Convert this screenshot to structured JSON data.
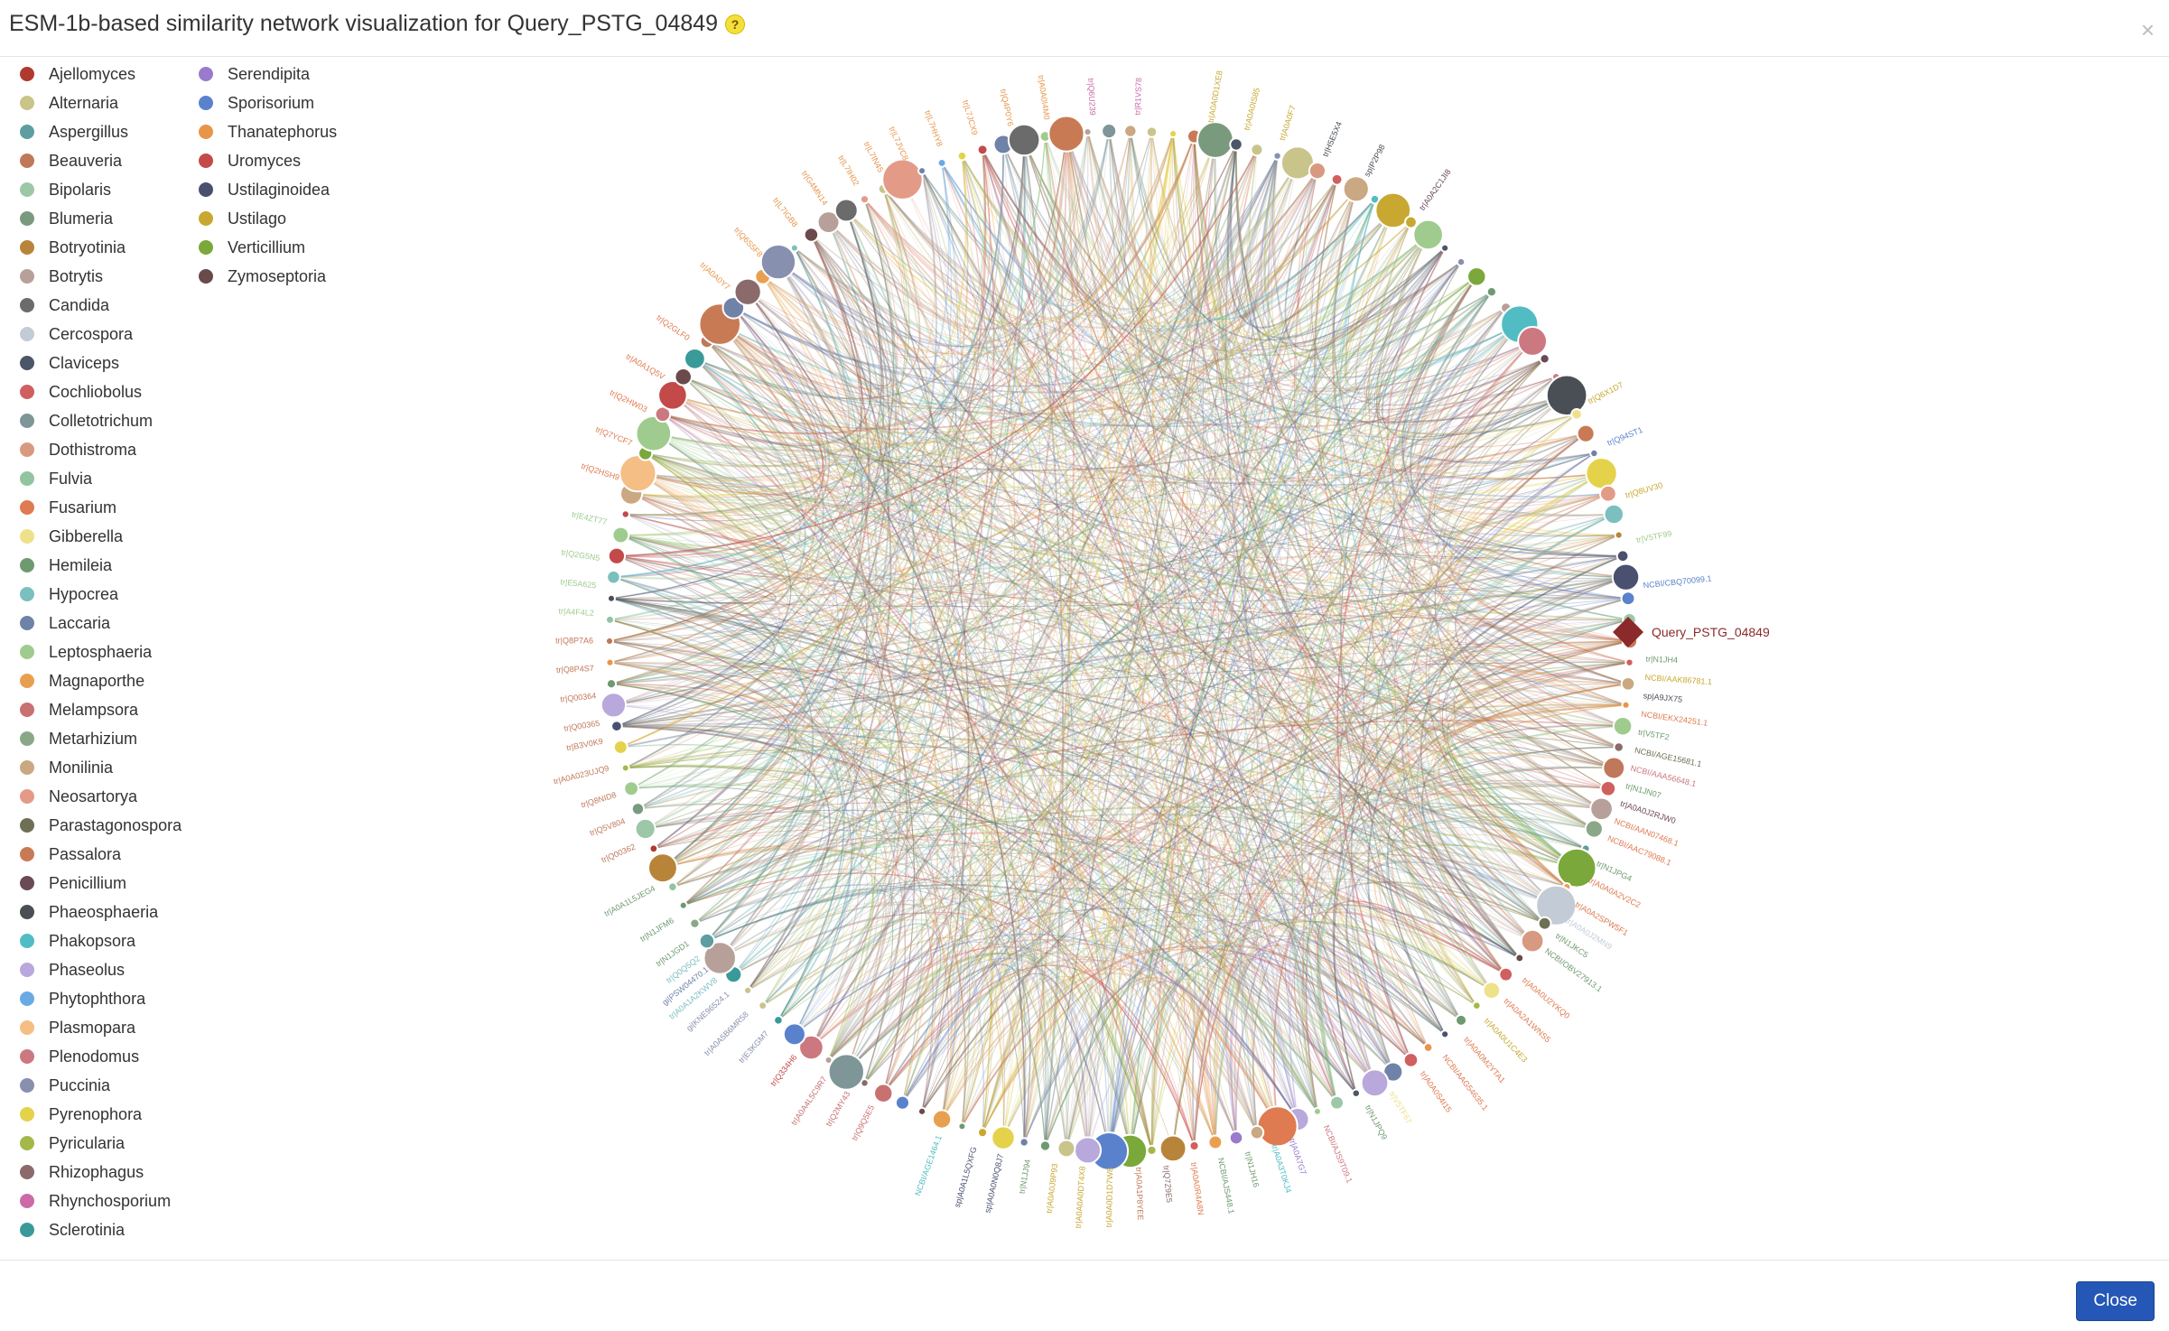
{
  "dialog": {
    "title": "ESM-1b-based similarity network visualization for Query_PSTG_04849",
    "help_icon": "?",
    "close_icon": "×",
    "close_button": "Close"
  },
  "legend": {
    "col1": [
      {
        "label": "Ajellomyces",
        "color": "#b03a2e"
      },
      {
        "label": "Alternaria",
        "color": "#c9c48a"
      },
      {
        "label": "Aspergillus",
        "color": "#5e9ea0"
      },
      {
        "label": "Beauveria",
        "color": "#c0785a"
      },
      {
        "label": "Bipolaris",
        "color": "#9cc8a8"
      },
      {
        "label": "Blumeria",
        "color": "#7a9a7e"
      },
      {
        "label": "Botryotinia",
        "color": "#b8843a"
      },
      {
        "label": "Botrytis",
        "color": "#b8a09a"
      },
      {
        "label": "Candida",
        "color": "#6b6b6b"
      },
      {
        "label": "Cercospora",
        "color": "#c3ccd6"
      },
      {
        "label": "Claviceps",
        "color": "#4b5668"
      },
      {
        "label": "Cochliobolus",
        "color": "#d05f5f"
      },
      {
        "label": "Colletotrichum",
        "color": "#7f9699"
      },
      {
        "label": "Dothistroma",
        "color": "#d79a80"
      },
      {
        "label": "Fulvia",
        "color": "#92c4a0"
      },
      {
        "label": "Fusarium",
        "color": "#e07a50"
      },
      {
        "label": "Gibberella",
        "color": "#efe08a"
      },
      {
        "label": "Hemileia",
        "color": "#6f9a70"
      },
      {
        "label": "Hypocrea",
        "color": "#7cbfbf"
      },
      {
        "label": "Laccaria",
        "color": "#6f82a8"
      },
      {
        "label": "Leptosphaeria",
        "color": "#9fcc8e"
      },
      {
        "label": "Magnaporthe",
        "color": "#e8a050"
      },
      {
        "label": "Melampsora",
        "color": "#c97070"
      },
      {
        "label": "Metarhizium",
        "color": "#8aa888"
      },
      {
        "label": "Monilinia",
        "color": "#c9a882"
      },
      {
        "label": "Neosartorya",
        "color": "#e39b88"
      },
      {
        "label": "Parastagonospora",
        "color": "#6f6f55"
      },
      {
        "label": "Passalora",
        "color": "#c87a55"
      },
      {
        "label": "Penicillium",
        "color": "#6a4a55"
      },
      {
        "label": "Phaeosphaeria",
        "color": "#4a4f55"
      },
      {
        "label": "Phakopsora",
        "color": "#52bcc4"
      },
      {
        "label": "Phaseolus",
        "color": "#b8a8dc"
      },
      {
        "label": "Phytophthora",
        "color": "#6aaae4"
      },
      {
        "label": "Plasmopara",
        "color": "#f4be84"
      },
      {
        "label": "Plenodomus",
        "color": "#cc7880"
      },
      {
        "label": "Puccinia",
        "color": "#8890b0"
      },
      {
        "label": "Pyrenophora",
        "color": "#e4d24a"
      },
      {
        "label": "Pyricularia",
        "color": "#a4b84a"
      },
      {
        "label": "Rhizophagus",
        "color": "#8a6a6a"
      },
      {
        "label": "Rhynchosporium",
        "color": "#cc6aa8"
      },
      {
        "label": "Sclerotinia",
        "color": "#3a9a9a"
      }
    ],
    "col2": [
      {
        "label": "Serendipita",
        "color": "#9a7acc"
      },
      {
        "label": "Sporisorium",
        "color": "#5a82cc"
      },
      {
        "label": "Thanatephorus",
        "color": "#e8954a"
      },
      {
        "label": "Uromyces",
        "color": "#c44a4a"
      },
      {
        "label": "Ustilaginoidea",
        "color": "#4a5070"
      },
      {
        "label": "Ustilago",
        "color": "#c8a830"
      },
      {
        "label": "Verticillium",
        "color": "#7aa83a"
      },
      {
        "label": "Zymoseptoria",
        "color": "#6a4a4a"
      }
    ]
  },
  "graph": {
    "query_label": "Query_PSTG_04849",
    "query_color": "#8b2a2a",
    "node_labels": [
      {
        "label": "NCBI/CBQ70099.1",
        "color": "#5a82cc",
        "angle": -6
      },
      {
        "label": "tr|V5TF99",
        "color": "#9fcc8e",
        "angle": -11
      },
      {
        "label": "tr|Q8UV30",
        "color": "#c8a830",
        "angle": -16
      },
      {
        "label": "tr|Q94ST1",
        "color": "#5a82cc",
        "angle": -22
      },
      {
        "label": "tr|Q6X1D7",
        "color": "#c8a830",
        "angle": -27
      },
      {
        "label": "tr|A0A2C1JI8",
        "color": "#6a4a55",
        "angle": -55
      },
      {
        "label": "sp|P2P98",
        "color": "#4a4f55",
        "angle": -62
      },
      {
        "label": "tr|H5E5X4",
        "color": "#4a4f55",
        "angle": -67
      },
      {
        "label": "tr|A0A0F7",
        "color": "#c8a830",
        "angle": -72
      },
      {
        "label": "tr|A0A0IS85",
        "color": "#c8a830",
        "angle": -76
      },
      {
        "label": "tr|A0A0D1XE8",
        "color": "#c8a830",
        "angle": -80
      },
      {
        "label": "tr|R1VS78",
        "color": "#cc6aa8",
        "angle": -88
      },
      {
        "label": "tr|Q6U239",
        "color": "#cc6aa8",
        "angle": -93
      },
      {
        "label": "tr|A0A0I4M0",
        "color": "#e8954a",
        "angle": -98
      },
      {
        "label": "tr|Q4P0Y6",
        "color": "#e8954a",
        "angle": -102
      },
      {
        "label": "tr|L7JCX9",
        "color": "#e8954a",
        "angle": -106
      },
      {
        "label": "tr|L7HHY8",
        "color": "#e8954a",
        "angle": -110
      },
      {
        "label": "tr|L7JVC8",
        "color": "#e8954a",
        "angle": -114
      },
      {
        "label": "tr|L7IN45",
        "color": "#e8954a",
        "angle": -117
      },
      {
        "label": "tr|L7IH02",
        "color": "#e8954a",
        "angle": -120
      },
      {
        "label": "tr|G4MN14",
        "color": "#e8954a",
        "angle": -124
      },
      {
        "label": "tr|L7IGB8",
        "color": "#e8954a",
        "angle": -128
      },
      {
        "label": "tr|Q6S5F8",
        "color": "#e8954a",
        "angle": -133
      },
      {
        "label": "tr|A0A0Y7",
        "color": "#e8954a",
        "angle": -138
      },
      {
        "label": "tr|Q2GLF0",
        "color": "#e07a50",
        "angle": -145
      },
      {
        "label": "tr|A0A1Q5V",
        "color": "#e07a50",
        "angle": -150
      },
      {
        "label": "tr|Q2HW03",
        "color": "#e07a50",
        "angle": -154
      },
      {
        "label": "tr|Q7YCF7",
        "color": "#e07a50",
        "angle": -158
      },
      {
        "label": "tr|Q2HSH9",
        "color": "#e07a50",
        "angle": -162
      },
      {
        "label": "tr|E4ZT77",
        "color": "#9fcc8e",
        "angle": -167
      },
      {
        "label": "tr|Q2G5N5",
        "color": "#9fcc8e",
        "angle": -171
      },
      {
        "label": "tr|E5A625",
        "color": "#9fcc8e",
        "angle": -174
      },
      {
        "label": "tr|A4F4L2",
        "color": "#9fcc8e",
        "angle": -177
      },
      {
        "label": "tr|Q8P7A6",
        "color": "#c0785a",
        "angle": -180
      },
      {
        "label": "tr|Q8P4S7",
        "color": "#c0785a",
        "angle": 177
      },
      {
        "label": "tr|Q00364",
        "color": "#c0785a",
        "angle": 174
      },
      {
        "label": "tr|Q00365",
        "color": "#c0785a",
        "angle": 171
      },
      {
        "label": "tr|B3V0K9",
        "color": "#c0785a",
        "angle": 169
      },
      {
        "label": "tr|A0A023UJQ9",
        "color": "#c0785a",
        "angle": 166
      },
      {
        "label": "tr|Q8NID8",
        "color": "#c0785a",
        "angle": 163
      },
      {
        "label": "tr|Q5V804",
        "color": "#c0785a",
        "angle": 160
      },
      {
        "label": "tr|Q00362",
        "color": "#c0785a",
        "angle": 157
      },
      {
        "label": "tr|A0A1L5JEG4",
        "color": "#6f9a70",
        "angle": 152
      },
      {
        "label": "tr|N1JFM6",
        "color": "#6f9a70",
        "angle": 148
      },
      {
        "label": "tr|N1JGD1",
        "color": "#6f9a70",
        "angle": 145
      },
      {
        "label": "tr|Q0Q5Q2",
        "color": "#7cbfbf",
        "angle": 143
      },
      {
        "label": "tr|A0A1A2KWV8",
        "color": "#7cbfbf",
        "angle": 140
      },
      {
        "label": "gi|PSW04470.1",
        "color": "#6f82a8",
        "angle": 141.5
      },
      {
        "label": "gi|KNE96524.1",
        "color": "#8890b0",
        "angle": 138
      },
      {
        "label": "tr|A0A5B6MR58",
        "color": "#8890b0",
        "angle": 135
      },
      {
        "label": "tr|E3KGM7",
        "color": "#8890b0",
        "angle": 132
      },
      {
        "label": "tr|Q334H6",
        "color": "#c44a4a",
        "angle": 128
      },
      {
        "label": "tr|A0A4L5C9R7",
        "color": "#c97070",
        "angle": 124
      },
      {
        "label": "tr|Q2MY43",
        "color": "#c97070",
        "angle": 121
      },
      {
        "label": "tr|Q9Q5E5",
        "color": "#c97070",
        "angle": 118
      },
      {
        "label": "sp|A0A1L5QXFG",
        "color": "#4a5070",
        "angle": 106
      },
      {
        "label": "NCBI/AGE1464.1",
        "color": "#52bcc4",
        "angle": 110
      },
      {
        "label": "sp|A0A0N0Q8J7",
        "color": "#4a5070",
        "angle": 103
      },
      {
        "label": "tr|N1JJ94",
        "color": "#6f9a70",
        "angle": 100
      },
      {
        "label": "tr|A0A0J9P93",
        "color": "#c8a830",
        "angle": 97
      },
      {
        "label": "tr|A0A0A0DT4X8",
        "color": "#c8a830",
        "angle": 94
      },
      {
        "label": "tr|A0A0D1D7W8",
        "color": "#c8a830",
        "angle": 91
      },
      {
        "label": "tr|A0A1P8YEE",
        "color": "#c0785a",
        "angle": 88
      },
      {
        "label": "tr|Q7Z9E5",
        "color": "#8a6a6a",
        "angle": 85
      },
      {
        "label": "tr|A0A0R4A8N",
        "color": "#e07a50",
        "angle": 82
      },
      {
        "label": "NCBI/AJS448.1",
        "color": "#6f9a70",
        "angle": 79
      },
      {
        "label": "tr|N1JH16",
        "color": "#6f9a70",
        "angle": 76
      },
      {
        "label": "tr|A0A3T0KJ4",
        "color": "#52bcc4",
        "angle": 73
      },
      {
        "label": "tr|A0A7G7",
        "color": "#9a7acc",
        "angle": 71
      },
      {
        "label": "NCBI/AJS9T09.1",
        "color": "#cc7880",
        "angle": 67
      },
      {
        "label": "tr|N1JPQ9",
        "color": "#6f9a70",
        "angle": 62
      },
      {
        "label": "tr|V5TF67",
        "color": "#efe08a",
        "angle": 59
      },
      {
        "label": "tr|A0A0S4I15",
        "color": "#e07a50",
        "angle": 55
      },
      {
        "label": "NCBI/AAG54635.1",
        "color": "#e07a50",
        "angle": 52
      },
      {
        "label": "tr|A0A0M2YTA1",
        "color": "#e07a50",
        "angle": 49
      },
      {
        "label": "tr|A0A0U1C4E3",
        "color": "#c8a830",
        "angle": 46
      },
      {
        "label": "tr|A0A2A1WNS5",
        "color": "#e07a50",
        "angle": 43
      },
      {
        "label": "tr|A0A0U2YKQ0",
        "color": "#e07a50",
        "angle": 40
      },
      {
        "label": "NCBI/OBV27913.1",
        "color": "#6f9a70",
        "angle": 36
      },
      {
        "label": "tr|N1JKC5",
        "color": "#6f9a70",
        "angle": 34
      },
      {
        "label": "tr|A0A0J2MN9",
        "color": "#c3ccd6",
        "angle": 32
      },
      {
        "label": "tr|A0A2SPW5F1",
        "color": "#e07a50",
        "angle": 30
      },
      {
        "label": "tr|A0A0A2V2C2",
        "color": "#e07a50",
        "angle": 27
      },
      {
        "label": "tr|N1JPG4",
        "color": "#6f9a70",
        "angle": 25
      },
      {
        "label": "NCBI/AAC79088.1",
        "color": "#e07a50",
        "angle": 22
      },
      {
        "label": "NCBI/AAN07468.1",
        "color": "#e07a50",
        "angle": 20
      },
      {
        "label": "tr|A0A0J2RJW0",
        "color": "#6a4a55",
        "angle": 18
      },
      {
        "label": "tr|N1JN07",
        "color": "#6f9a70",
        "angle": 16
      },
      {
        "label": "NCBI/AAA56648.1",
        "color": "#cc7880",
        "angle": 14
      },
      {
        "label": "NCBI/AGE15681.1",
        "color": "#6f6f55",
        "angle": 12
      },
      {
        "label": "tr|V5TF2",
        "color": "#6f9a70",
        "angle": 10
      },
      {
        "label": "NCBI/EKX24251.1",
        "color": "#e07a50",
        "angle": 8
      },
      {
        "label": "sp|A9JX75",
        "color": "#4a4f55",
        "angle": 6
      },
      {
        "label": "tr|N1JH4",
        "color": "#6f9a70",
        "angle": 2
      },
      {
        "label": "NCBI/AAK86781.1",
        "color": "#c8a830",
        "angle": 4
      }
    ]
  }
}
